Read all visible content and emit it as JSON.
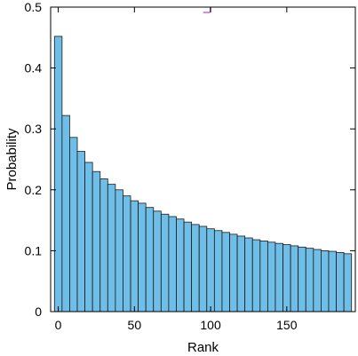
{
  "chart_data": {
    "type": "bar",
    "xlabel": "Rank",
    "ylabel": "Probability",
    "bar_color": "#6ebee8",
    "bar_edge_color": "#1a1a1a",
    "marker_color": "#c040c0",
    "xlim": [
      -5,
      195
    ],
    "ylim": [
      0,
      0.5
    ],
    "xticks": [
      0,
      50,
      100,
      150
    ],
    "yticks": [
      0,
      0.1,
      0.2,
      0.3,
      0.4,
      0.5
    ],
    "bin_width": 5,
    "x": [
      0,
      5,
      10,
      15,
      20,
      25,
      30,
      35,
      40,
      45,
      50,
      55,
      60,
      65,
      70,
      75,
      80,
      85,
      90,
      95,
      100,
      105,
      110,
      115,
      120,
      125,
      130,
      135,
      140,
      145,
      150,
      155,
      160,
      165,
      170,
      175,
      180,
      185,
      190
    ],
    "values": [
      0.452,
      0.322,
      0.286,
      0.263,
      0.245,
      0.23,
      0.218,
      0.209,
      0.2,
      0.19,
      0.182,
      0.178,
      0.171,
      0.165,
      0.16,
      0.156,
      0.152,
      0.147,
      0.143,
      0.14,
      0.136,
      0.133,
      0.13,
      0.127,
      0.124,
      0.121,
      0.118,
      0.116,
      0.114,
      0.112,
      0.11,
      0.108,
      0.106,
      0.104,
      0.102,
      0.1,
      0.099,
      0.097,
      0.095
    ],
    "marker": {
      "x": 98,
      "y": 0.5
    },
    "grid": false,
    "legend": "none"
  }
}
